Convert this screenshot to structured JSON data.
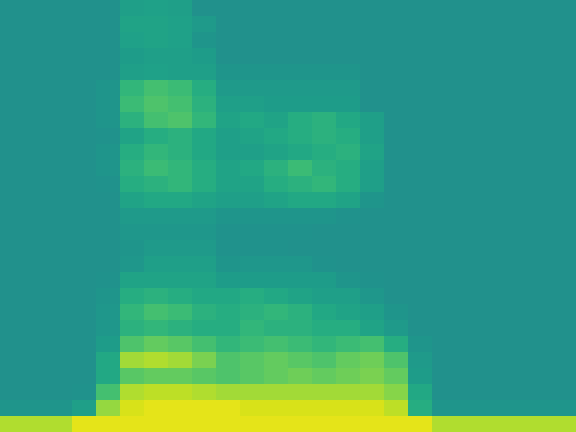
{
  "chart_data": {
    "type": "heatmap",
    "tick_labels": false,
    "color": "viridis",
    "zlim": [
      0,
      100
    ],
    "cells": [
      [
        50,
        50,
        50,
        50,
        50,
        56,
        57,
        56,
        50,
        50,
        50,
        50,
        50,
        50,
        50,
        50,
        50,
        50,
        50,
        50,
        50,
        50,
        50,
        50
      ],
      [
        50,
        50,
        50,
        50,
        50,
        58,
        58,
        57,
        54,
        50,
        50,
        50,
        50,
        50,
        50,
        50,
        50,
        50,
        50,
        50,
        50,
        50,
        50,
        50
      ],
      [
        50,
        50,
        50,
        50,
        50,
        57,
        58,
        57,
        52,
        50,
        50,
        50,
        50,
        50,
        50,
        50,
        50,
        50,
        50,
        50,
        50,
        50,
        50,
        50
      ],
      [
        50,
        50,
        50,
        50,
        50,
        55,
        56,
        56,
        55,
        50,
        50,
        50,
        50,
        50,
        50,
        50,
        50,
        50,
        50,
        50,
        50,
        50,
        50,
        50
      ],
      [
        50,
        50,
        50,
        50,
        50,
        56,
        57,
        56,
        56,
        52,
        52,
        52,
        52,
        52,
        52,
        50,
        50,
        50,
        50,
        50,
        50,
        50,
        50,
        50
      ],
      [
        50,
        50,
        50,
        50,
        52,
        66,
        70,
        68,
        62,
        54,
        54,
        54,
        54,
        54,
        54,
        50,
        50,
        50,
        50,
        50,
        50,
        50,
        50,
        50
      ],
      [
        50,
        50,
        50,
        50,
        52,
        68,
        72,
        70,
        64,
        56,
        56,
        55,
        55,
        55,
        55,
        50,
        50,
        50,
        50,
        50,
        50,
        50,
        50,
        50
      ],
      [
        50,
        50,
        50,
        50,
        52,
        64,
        70,
        72,
        66,
        58,
        60,
        58,
        62,
        64,
        60,
        56,
        50,
        50,
        50,
        50,
        50,
        50,
        50,
        50
      ],
      [
        50,
        50,
        50,
        50,
        51,
        58,
        62,
        64,
        60,
        56,
        58,
        60,
        62,
        64,
        62,
        56,
        50,
        50,
        50,
        50,
        50,
        50,
        50,
        50
      ],
      [
        50,
        50,
        50,
        50,
        52,
        62,
        66,
        64,
        60,
        56,
        56,
        58,
        60,
        62,
        64,
        58,
        50,
        50,
        50,
        50,
        50,
        50,
        50,
        50
      ],
      [
        50,
        50,
        50,
        50,
        52,
        64,
        68,
        66,
        62,
        58,
        60,
        64,
        68,
        64,
        62,
        56,
        50,
        50,
        50,
        50,
        50,
        50,
        50,
        50
      ],
      [
        50,
        50,
        50,
        50,
        51,
        62,
        64,
        66,
        62,
        58,
        58,
        62,
        64,
        66,
        62,
        56,
        50,
        50,
        50,
        50,
        50,
        50,
        50,
        50
      ],
      [
        50,
        50,
        50,
        50,
        50,
        58,
        60,
        60,
        58,
        56,
        56,
        58,
        60,
        60,
        58,
        52,
        50,
        50,
        50,
        50,
        50,
        50,
        50,
        50
      ],
      [
        50,
        50,
        50,
        50,
        50,
        54,
        54,
        54,
        54,
        52,
        52,
        52,
        52,
        52,
        51,
        50,
        50,
        50,
        50,
        50,
        50,
        50,
        50,
        50
      ],
      [
        50,
        50,
        50,
        50,
        50,
        53,
        53,
        53,
        53,
        51,
        51,
        51,
        51,
        50,
        50,
        50,
        50,
        50,
        50,
        50,
        50,
        50,
        50,
        50
      ],
      [
        50,
        50,
        50,
        50,
        50,
        52,
        54,
        54,
        54,
        51,
        51,
        51,
        50,
        50,
        50,
        50,
        50,
        50,
        50,
        50,
        50,
        50,
        50,
        50
      ],
      [
        50,
        50,
        50,
        50,
        50,
        53,
        56,
        56,
        56,
        52,
        53,
        53,
        53,
        51,
        50,
        50,
        50,
        50,
        50,
        50,
        50,
        50,
        50,
        50
      ],
      [
        50,
        50,
        50,
        50,
        51,
        58,
        58,
        58,
        58,
        55,
        55,
        55,
        55,
        55,
        52,
        51,
        50,
        50,
        50,
        50,
        50,
        50,
        50,
        50
      ],
      [
        50,
        50,
        50,
        50,
        52,
        62,
        64,
        62,
        60,
        60,
        62,
        60,
        58,
        56,
        56,
        53,
        50,
        50,
        50,
        50,
        50,
        50,
        50,
        50
      ],
      [
        50,
        50,
        50,
        50,
        53,
        66,
        70,
        68,
        64,
        62,
        64,
        66,
        64,
        60,
        58,
        56,
        52,
        50,
        50,
        50,
        50,
        50,
        50,
        50
      ],
      [
        50,
        50,
        50,
        50,
        53,
        64,
        66,
        64,
        62,
        62,
        66,
        64,
        64,
        62,
        62,
        58,
        54,
        50,
        50,
        50,
        50,
        50,
        50,
        50
      ],
      [
        50,
        50,
        50,
        50,
        55,
        72,
        76,
        74,
        70,
        66,
        68,
        70,
        68,
        66,
        68,
        70,
        62,
        52,
        50,
        50,
        50,
        50,
        50,
        50
      ],
      [
        50,
        50,
        50,
        50,
        60,
        86,
        88,
        86,
        80,
        72,
        74,
        76,
        74,
        72,
        76,
        78,
        72,
        54,
        50,
        50,
        50,
        50,
        50,
        50
      ],
      [
        50,
        50,
        50,
        50,
        60,
        74,
        76,
        76,
        74,
        72,
        74,
        76,
        78,
        76,
        78,
        80,
        76,
        55,
        50,
        50,
        50,
        50,
        50,
        50
      ],
      [
        50,
        50,
        50,
        51,
        70,
        88,
        90,
        90,
        88,
        86,
        86,
        86,
        86,
        86,
        86,
        86,
        82,
        60,
        50,
        50,
        50,
        50,
        50,
        50
      ],
      [
        52,
        52,
        52,
        56,
        84,
        94,
        96,
        96,
        96,
        96,
        94,
        94,
        94,
        94,
        94,
        94,
        90,
        62,
        52,
        52,
        52,
        52,
        52,
        52
      ],
      [
        88,
        88,
        88,
        96,
        96,
        96,
        96,
        96,
        96,
        96,
        96,
        96,
        96,
        96,
        96,
        96,
        96,
        96,
        88,
        88,
        88,
        88,
        88,
        88
      ]
    ]
  }
}
